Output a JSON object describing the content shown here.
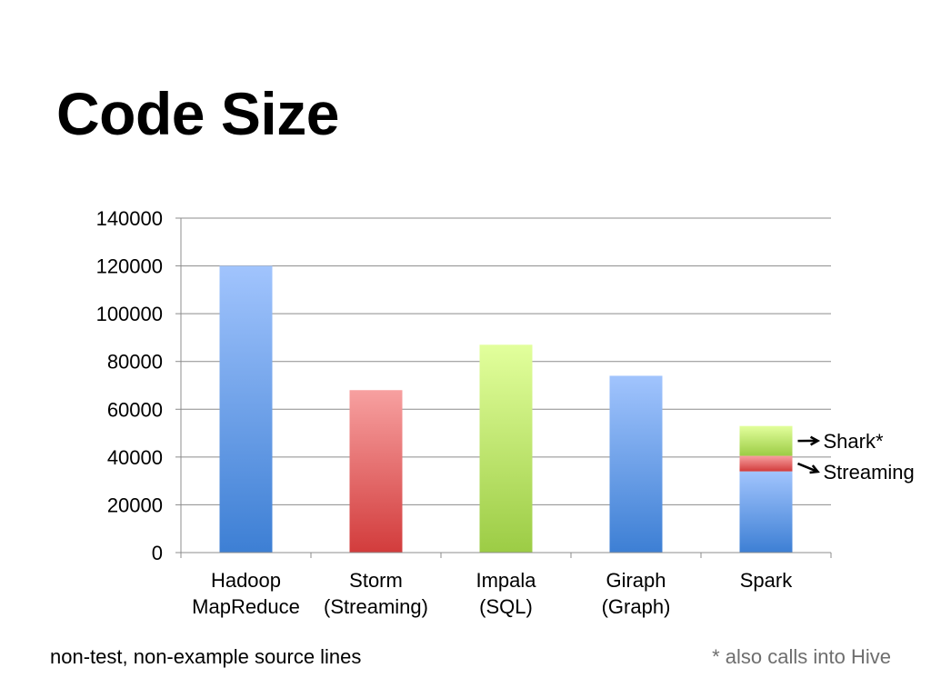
{
  "slide": {
    "title": "Code Size",
    "footnote_left": "non-test, non-example source lines",
    "footnote_right": "* also calls into Hive"
  },
  "colors": {
    "blue_top": "#a1c4fd",
    "blue_bottom": "#3d7fd4",
    "red_top": "#f7a0a0",
    "red_bottom": "#d23c3c",
    "green_top": "#e2ff9c",
    "green_bottom": "#9ccc45",
    "gridline": "#8c8c8c",
    "axis": "#8c8c8c",
    "arrow": "#000000"
  },
  "chart_data": {
    "type": "bar",
    "stacked": true,
    "categories": [
      [
        "Hadoop",
        "MapReduce"
      ],
      [
        "Storm",
        "(Streaming)"
      ],
      [
        "Impala",
        "(SQL)"
      ],
      [
        "Giraph",
        "(Graph)"
      ],
      [
        "Spark"
      ]
    ],
    "bars": [
      {
        "segments": [
          {
            "value": 120000,
            "color": "blue"
          }
        ]
      },
      {
        "segments": [
          {
            "value": 68000,
            "color": "red"
          }
        ]
      },
      {
        "segments": [
          {
            "value": 87000,
            "color": "green"
          }
        ]
      },
      {
        "segments": [
          {
            "value": 74000,
            "color": "blue"
          }
        ]
      },
      {
        "segments": [
          {
            "value": 34000,
            "color": "blue",
            "label": ""
          },
          {
            "value": 6500,
            "color": "red",
            "label": "Streaming"
          },
          {
            "value": 12500,
            "color": "green",
            "label": "Shark*"
          }
        ]
      }
    ],
    "yticks": [
      0,
      20000,
      40000,
      60000,
      80000,
      100000,
      120000,
      140000
    ],
    "ylim": [
      0,
      140000
    ],
    "grid": true,
    "title": "",
    "xlabel": "",
    "ylabel": ""
  }
}
